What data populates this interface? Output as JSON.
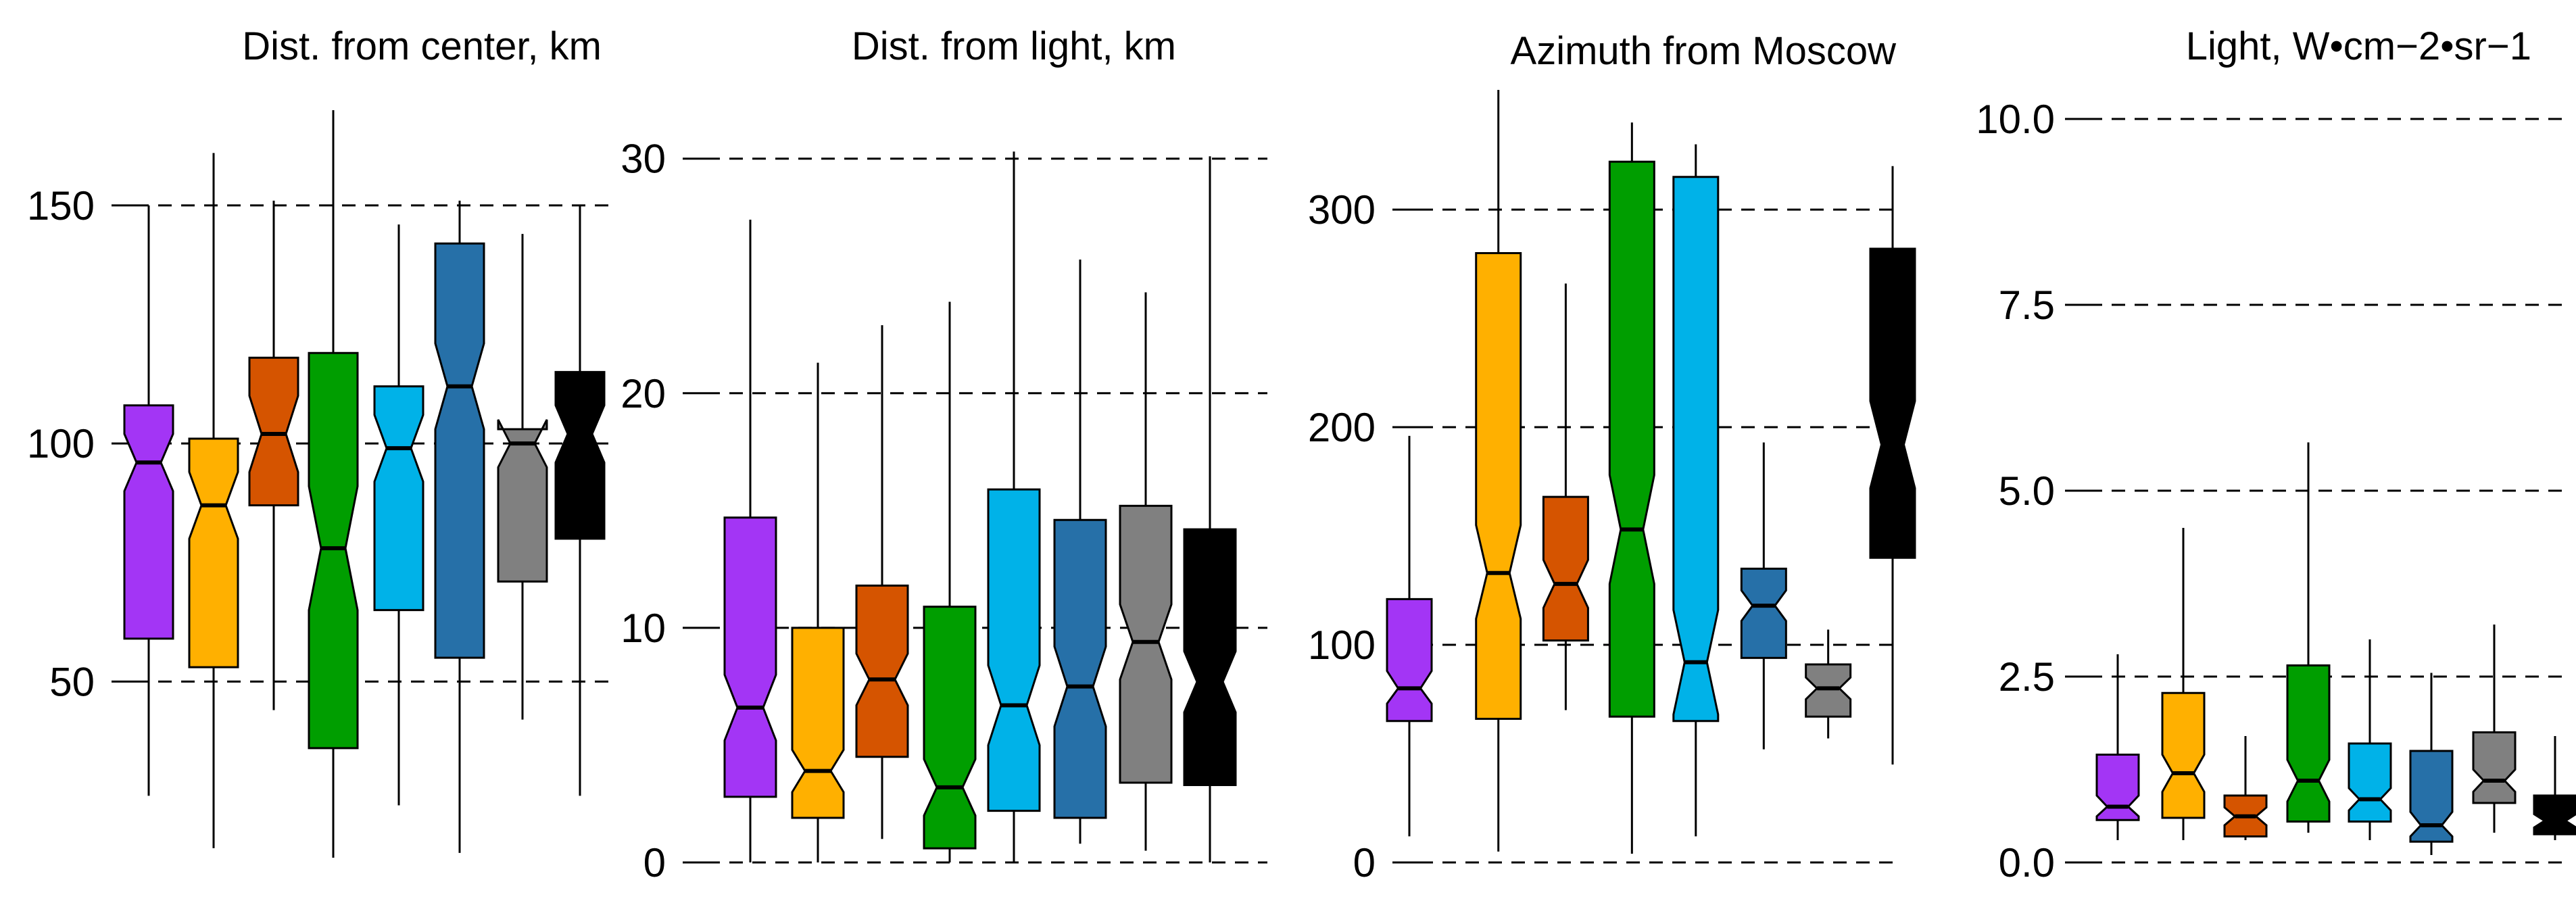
{
  "chart_data": [
    {
      "type": "boxplot",
      "title": "Dist. from center, km",
      "ylim": [
        12,
        170
      ],
      "yticks": [
        50,
        100,
        150
      ],
      "tick_labels": [
        "50",
        "100",
        "150"
      ],
      "grid": true,
      "boxes": [
        {
          "color": "#A335F5",
          "q1": 59,
          "median": 96,
          "q3": 108,
          "whisker_low": 26,
          "whisker_high": 150,
          "notch": [
            90,
            102
          ]
        },
        {
          "color": "#FFB000",
          "q1": 53,
          "median": 87,
          "q3": 101,
          "whisker_low": 15,
          "whisker_high": 161,
          "notch": [
            80,
            94
          ]
        },
        {
          "color": "#D55400",
          "q1": 87,
          "median": 102,
          "q3": 118,
          "whisker_low": 44,
          "whisker_high": 151,
          "notch": [
            94,
            110
          ]
        },
        {
          "color": "#009E00",
          "q1": 36,
          "median": 78,
          "q3": 119,
          "whisker_low": 13,
          "whisker_high": 170,
          "notch": [
            65,
            91
          ]
        },
        {
          "color": "#00B2E8",
          "q1": 65,
          "median": 99,
          "q3": 112,
          "whisker_low": 24,
          "whisker_high": 146,
          "notch": [
            92,
            106
          ]
        },
        {
          "color": "#2670A8",
          "q1": 55,
          "median": 112,
          "q3": 142,
          "whisker_low": 14,
          "whisker_high": 151,
          "notch": [
            103,
            121
          ]
        },
        {
          "color": "#808080",
          "q1": 71,
          "median": 100,
          "q3": 103,
          "whisker_low": 42,
          "whisker_high": 144,
          "notch": [
            95,
            105
          ]
        },
        {
          "color": "#000000",
          "q1": 80,
          "median": 102,
          "q3": 115,
          "whisker_low": 26,
          "whisker_high": 150,
          "notch": [
            96,
            108
          ]
        }
      ]
    },
    {
      "type": "boxplot",
      "title": "Dist. from light, km",
      "ylim": [
        0,
        31
      ],
      "yticks": [
        0,
        10,
        20,
        30
      ],
      "tick_labels": [
        "0",
        "10",
        "20",
        "30"
      ],
      "grid": true,
      "boxes": [
        {
          "color": "#A335F5",
          "q1": 2.8,
          "median": 6.6,
          "q3": 14.7,
          "whisker_low": 0,
          "whisker_high": 27.4,
          "notch": [
            5.2,
            8.0
          ]
        },
        {
          "color": "#FFB000",
          "q1": 1.9,
          "median": 3.9,
          "q3": 10.0,
          "whisker_low": 0,
          "whisker_high": 21.3,
          "notch": [
            3.0,
            4.8
          ]
        },
        {
          "color": "#D55400",
          "q1": 4.5,
          "median": 7.8,
          "q3": 11.8,
          "whisker_low": 1.0,
          "whisker_high": 22.9,
          "notch": [
            6.7,
            8.9
          ]
        },
        {
          "color": "#009E00",
          "q1": 0.6,
          "median": 3.2,
          "q3": 10.9,
          "whisker_low": 0,
          "whisker_high": 23.9,
          "notch": [
            2.0,
            4.4
          ]
        },
        {
          "color": "#00B2E8",
          "q1": 2.2,
          "median": 6.7,
          "q3": 15.9,
          "whisker_low": 0,
          "whisker_high": 30.3,
          "notch": [
            5.0,
            8.4
          ]
        },
        {
          "color": "#2670A8",
          "q1": 1.9,
          "median": 7.5,
          "q3": 14.6,
          "whisker_low": 0.8,
          "whisker_high": 25.7,
          "notch": [
            5.8,
            9.2
          ]
        },
        {
          "color": "#808080",
          "q1": 3.4,
          "median": 9.4,
          "q3": 15.2,
          "whisker_low": 0.5,
          "whisker_high": 24.3,
          "notch": [
            7.8,
            11.0
          ]
        },
        {
          "color": "#000000",
          "q1": 3.3,
          "median": 7.7,
          "q3": 14.2,
          "whisker_low": 0,
          "whisker_high": 30.1,
          "notch": [
            6.4,
            9.0
          ]
        }
      ]
    },
    {
      "type": "boxplot",
      "title": "Azimuth from Moscow",
      "ylim": [
        0,
        355
      ],
      "yticks": [
        0,
        100,
        200,
        300
      ],
      "tick_labels": [
        "0",
        "100",
        "200",
        "300"
      ],
      "grid": true,
      "boxes": [
        {
          "color": "#A335F5",
          "q1": 65,
          "median": 80,
          "q3": 121,
          "whisker_low": 12,
          "whisker_high": 196,
          "notch": [
            73,
            88
          ]
        },
        {
          "color": "#FFB000",
          "q1": 66,
          "median": 133,
          "q3": 280,
          "whisker_low": 5,
          "whisker_high": 355,
          "notch": [
            112,
            155
          ]
        },
        {
          "color": "#D55400",
          "q1": 102,
          "median": 128,
          "q3": 168,
          "whisker_low": 70,
          "whisker_high": 266,
          "notch": [
            117,
            139
          ]
        },
        {
          "color": "#009E00",
          "q1": 67,
          "median": 153,
          "q3": 322,
          "whisker_low": 4,
          "whisker_high": 340,
          "notch": [
            128,
            178
          ]
        },
        {
          "color": "#00B2E8",
          "q1": 65,
          "median": 92,
          "q3": 315,
          "whisker_low": 12,
          "whisker_high": 330,
          "notch": [
            68,
            116
          ]
        },
        {
          "color": "#2670A8",
          "q1": 94,
          "median": 118,
          "q3": 135,
          "whisker_low": 52,
          "whisker_high": 193,
          "notch": [
            111,
            125
          ]
        },
        {
          "color": "#808080",
          "q1": 67,
          "median": 80,
          "q3": 91,
          "whisker_low": 57,
          "whisker_high": 107,
          "notch": [
            75,
            85
          ]
        },
        {
          "color": "#000000",
          "q1": 140,
          "median": 192,
          "q3": 282,
          "whisker_low": 45,
          "whisker_high": 320,
          "notch": [
            172,
            212
          ]
        }
      ]
    },
    {
      "type": "boxplot",
      "title": "Light, W•cm−2•sr−1",
      "ylim": [
        0,
        10.3
      ],
      "yticks": [
        0,
        2.5,
        5,
        7.5,
        10
      ],
      "tick_labels": [
        "0.0",
        "2.5",
        "5.0",
        "7.5",
        "10.0"
      ],
      "grid": true,
      "boxes": [
        {
          "color": "#A335F5",
          "q1": 0.57,
          "median": 0.75,
          "q3": 1.45,
          "whisker_low": 0.3,
          "whisker_high": 2.8,
          "notch": [
            0.62,
            0.9
          ]
        },
        {
          "color": "#FFB000",
          "q1": 0.6,
          "median": 1.2,
          "q3": 2.28,
          "whisker_low": 0.3,
          "whisker_high": 4.5,
          "notch": [
            0.95,
            1.45
          ]
        },
        {
          "color": "#D55400",
          "q1": 0.35,
          "median": 0.62,
          "q3": 0.9,
          "whisker_low": 0.3,
          "whisker_high": 1.7,
          "notch": [
            0.5,
            0.74
          ]
        },
        {
          "color": "#009E00",
          "q1": 0.55,
          "median": 1.1,
          "q3": 2.65,
          "whisker_low": 0.4,
          "whisker_high": 5.65,
          "notch": [
            0.82,
            1.38
          ]
        },
        {
          "color": "#00B2E8",
          "q1": 0.55,
          "median": 0.85,
          "q3": 1.6,
          "whisker_low": 0.3,
          "whisker_high": 3.0,
          "notch": [
            0.7,
            1.0
          ]
        },
        {
          "color": "#2670A8",
          "q1": 0.28,
          "median": 0.5,
          "q3": 1.5,
          "whisker_low": 0.1,
          "whisker_high": 2.55,
          "notch": [
            0.35,
            0.68
          ]
        },
        {
          "color": "#808080",
          "q1": 0.8,
          "median": 1.1,
          "q3": 1.75,
          "whisker_low": 0.4,
          "whisker_high": 3.2,
          "notch": [
            0.95,
            1.25
          ]
        },
        {
          "color": "#000000",
          "q1": 0.38,
          "median": 0.56,
          "q3": 0.9,
          "whisker_low": 0.3,
          "whisker_high": 1.7,
          "notch": [
            0.47,
            0.65
          ]
        }
      ]
    }
  ]
}
